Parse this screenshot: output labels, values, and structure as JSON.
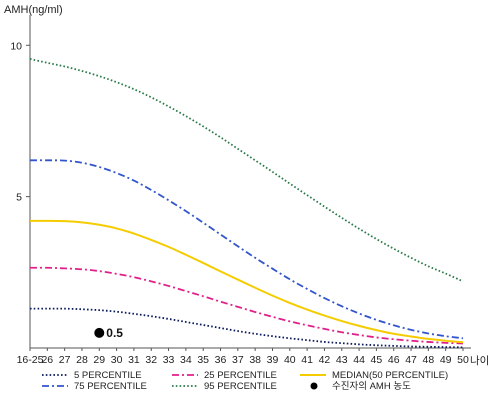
{
  "chart_data": {
    "type": "line",
    "ylabel": "AMH(ng/ml)",
    "xlabel": "나이",
    "ylim": [
      0,
      11
    ],
    "y_ticks": [
      "10",
      "5"
    ],
    "categories": [
      "16-25",
      "26",
      "27",
      "28",
      "29",
      "30",
      "31",
      "32",
      "33",
      "34",
      "35",
      "36",
      "37",
      "38",
      "39",
      "40",
      "41",
      "42",
      "43",
      "44",
      "45",
      "46",
      "47",
      "48",
      "49",
      "50"
    ],
    "grid": false,
    "legend_position": "bottom",
    "series": [
      {
        "name": "5 PERCENTILE",
        "color": "#0a1a5c",
        "style": "dotted",
        "values": [
          1.3,
          1.3,
          1.3,
          1.28,
          1.25,
          1.2,
          1.13,
          1.05,
          0.96,
          0.86,
          0.76,
          0.66,
          0.56,
          0.47,
          0.39,
          0.32,
          0.26,
          0.2,
          0.16,
          0.12,
          0.09,
          0.07,
          0.05,
          0.04,
          0.03,
          0.02
        ]
      },
      {
        "name": "25 PERCENTILE",
        "color": "#e0208a",
        "style": "dashdot",
        "values": [
          2.65,
          2.65,
          2.63,
          2.6,
          2.54,
          2.45,
          2.34,
          2.2,
          2.05,
          1.88,
          1.71,
          1.53,
          1.36,
          1.19,
          1.03,
          0.88,
          0.75,
          0.63,
          0.52,
          0.43,
          0.35,
          0.29,
          0.24,
          0.2,
          0.17,
          0.15
        ]
      },
      {
        "name": "MEDIAN(50 PERCENTILE)",
        "color": "#f5cc00",
        "style": "solid",
        "values": [
          4.2,
          4.2,
          4.19,
          4.15,
          4.07,
          3.95,
          3.78,
          3.57,
          3.34,
          3.08,
          2.81,
          2.53,
          2.26,
          1.99,
          1.73,
          1.49,
          1.27,
          1.07,
          0.89,
          0.73,
          0.59,
          0.47,
          0.38,
          0.3,
          0.24,
          0.19
        ]
      },
      {
        "name": "75 PERCENTILE",
        "color": "#3355cc",
        "style": "dashdot",
        "values": [
          6.2,
          6.2,
          6.19,
          6.12,
          5.98,
          5.78,
          5.53,
          5.22,
          4.88,
          4.52,
          4.14,
          3.75,
          3.36,
          2.98,
          2.62,
          2.27,
          1.95,
          1.65,
          1.38,
          1.14,
          0.93,
          0.75,
          0.6,
          0.48,
          0.39,
          0.32
        ]
      },
      {
        "name": "95 PERCENTILE",
        "color": "#2a7a4a",
        "style": "dotted",
        "values": [
          9.55,
          9.42,
          9.3,
          9.15,
          8.98,
          8.78,
          8.55,
          8.28,
          7.98,
          7.66,
          7.32,
          6.96,
          6.58,
          6.2,
          5.82,
          5.43,
          5.05,
          4.67,
          4.3,
          3.94,
          3.6,
          3.28,
          2.98,
          2.7,
          2.46,
          2.2
        ]
      }
    ],
    "marker": {
      "name": "수진자의 AMH 농도",
      "x": "29",
      "y": 0.5,
      "label": "0.5",
      "color": "#000000"
    }
  }
}
